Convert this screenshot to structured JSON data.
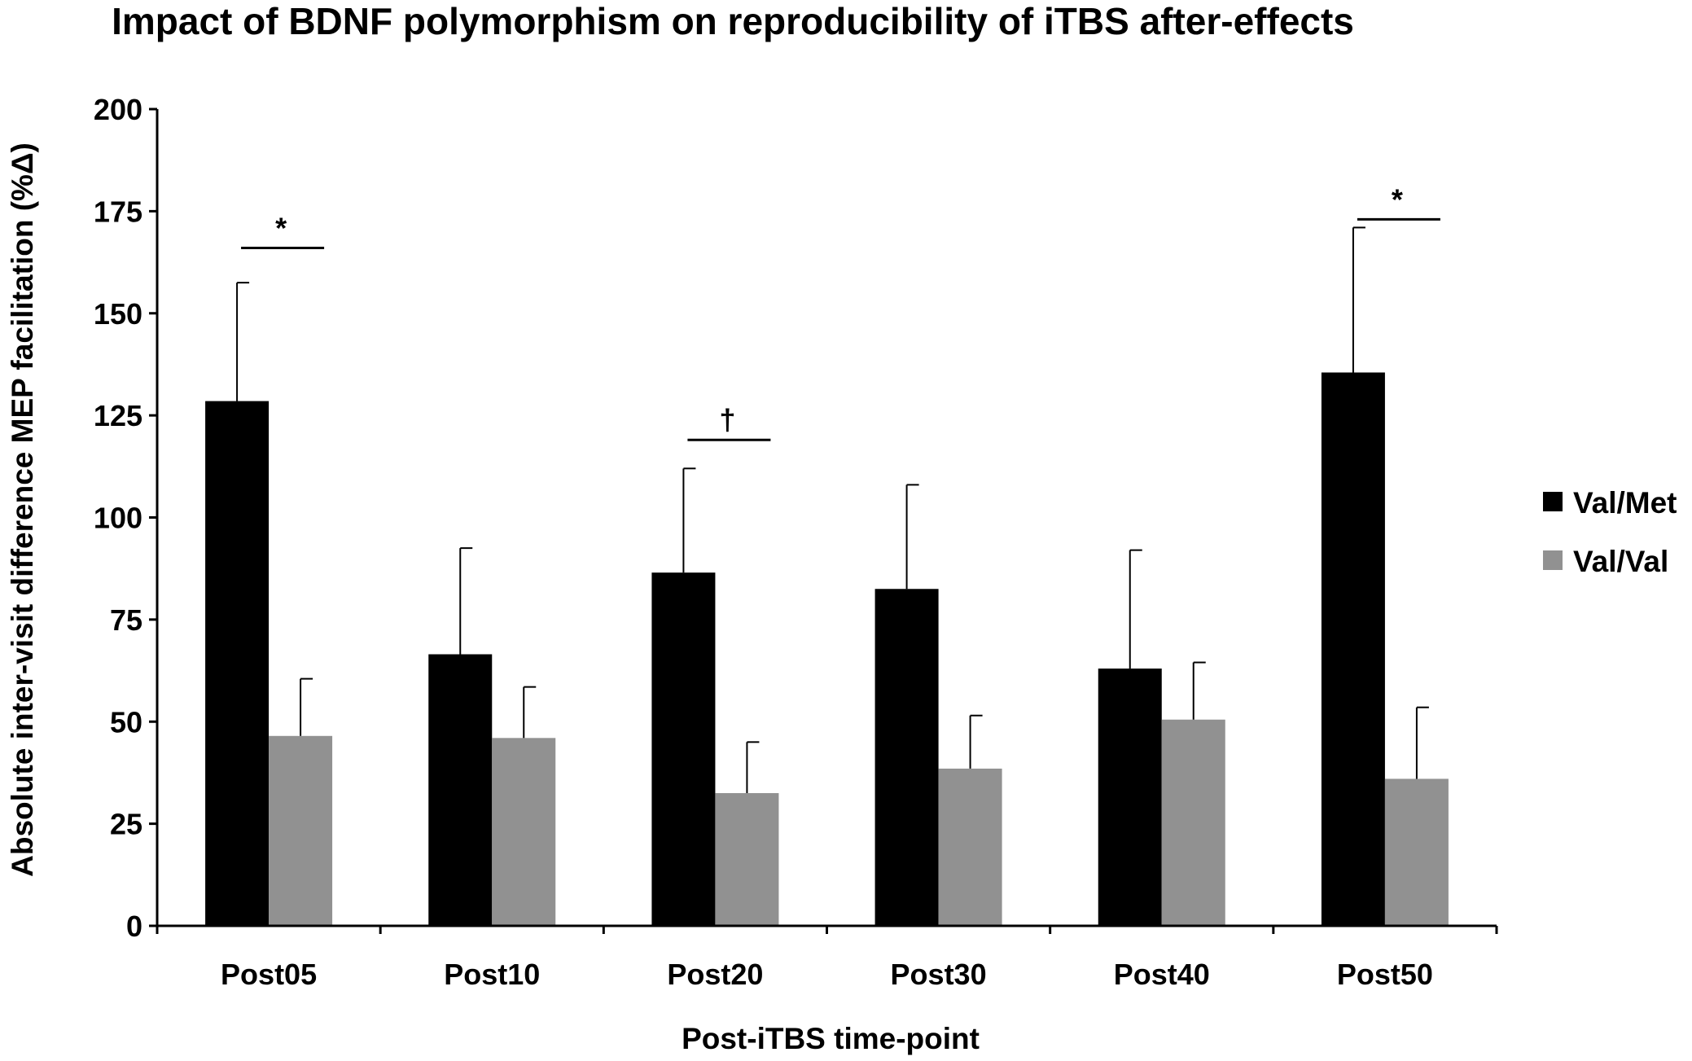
{
  "chart_data": {
    "type": "bar",
    "title": "Impact of BDNF polymorphism on reproducibility of iTBS after-effects",
    "xlabel": "Post-iTBS time-point",
    "ylabel": "Absolute inter-visit difference MEP facilitation (%Δ)",
    "ylim": [
      0,
      200
    ],
    "yticks": [
      "0",
      "25",
      "50",
      "75",
      "100",
      "125",
      "150",
      "175",
      "200"
    ],
    "grid": false,
    "legend_position": "right",
    "categories": [
      "Post05",
      "Post10",
      "Post20",
      "Post30",
      "Post40",
      "Post50"
    ],
    "series": [
      {
        "name": "Val/Met",
        "color": "#000000",
        "values": [
          128.5,
          66.5,
          86.5,
          82.5,
          63,
          135.5
        ],
        "error_upper": [
          29,
          26,
          25.5,
          25.5,
          29,
          35.5
        ]
      },
      {
        "name": "Val/Val",
        "color": "#919191",
        "values": [
          46.5,
          46,
          32.5,
          38.5,
          50.5,
          36
        ],
        "error_upper": [
          14,
          12.5,
          12.5,
          13,
          14,
          17.5
        ]
      }
    ],
    "annotations": [
      {
        "category": "Post05",
        "text": "*",
        "level": 166
      },
      {
        "category": "Post20",
        "text": "†",
        "level": 119
      },
      {
        "category": "Post50",
        "text": "*",
        "level": 173
      }
    ]
  }
}
